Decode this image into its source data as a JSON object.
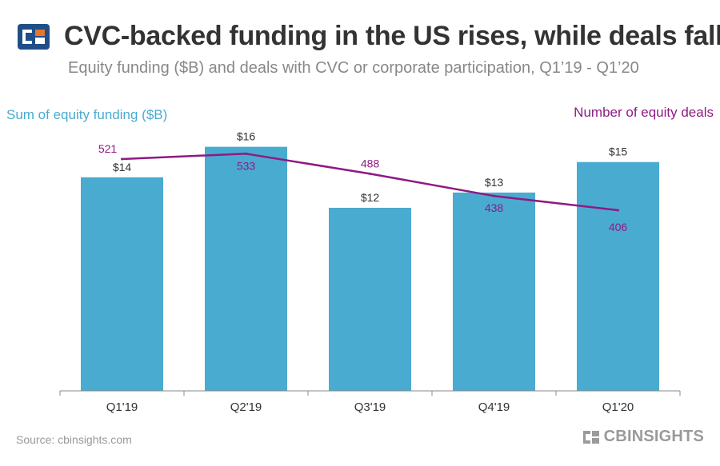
{
  "header": {
    "title": "CVC-backed funding in the US rises, while deals fall",
    "subtitle": "Equity funding ($B) and deals with CVC or corporate participation, Q1’19 - Q1’20"
  },
  "footer": {
    "source": "Source: cbinsights.com",
    "brand": "CBINSIGHTS"
  },
  "colors": {
    "bar": "#4aabd0",
    "line": "#8e1a82",
    "axis": "#888888",
    "brand_blue": "#1f4f86",
    "brand_orange": "#e8742e"
  },
  "icons": {
    "logo": "cb-insights-logo-icon"
  },
  "chart_data": {
    "type": "bar",
    "categories": [
      "Q1'19",
      "Q2'19",
      "Q3'19",
      "Q4'19",
      "Q1'20"
    ],
    "series": [
      {
        "name": "Sum of equity funding ($B)",
        "type": "bar",
        "values": [
          14,
          16,
          12,
          13,
          15
        ],
        "labels": [
          "$14",
          "$16",
          "$12",
          "$13",
          "$15"
        ],
        "axis": "left"
      },
      {
        "name": "Number of equity deals",
        "type": "line",
        "values": [
          521,
          533,
          488,
          438,
          406
        ],
        "labels": [
          "521",
          "533",
          "488",
          "438",
          "406"
        ],
        "axis": "right"
      }
    ],
    "ylim_left": [
      0,
      17.5
    ],
    "ylim_right": [
      0,
      600
    ],
    "grid": false,
    "legend": "axis titles top-left and top-right"
  }
}
